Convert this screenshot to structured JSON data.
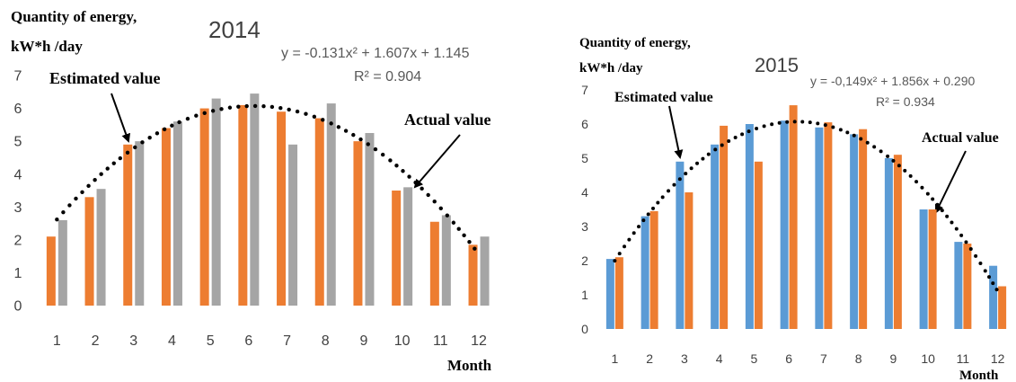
{
  "chart_data": [
    {
      "type": "bar",
      "title": "2014",
      "ylabel": [
        "Quantity of energy,",
        "kW*h /day"
      ],
      "xlabel": "Month",
      "ylim": [
        0,
        7
      ],
      "yticks": [
        "0",
        "1",
        "2",
        "3",
        "4",
        "5",
        "6",
        "7"
      ],
      "categories": [
        "1",
        "2",
        "3",
        "4",
        "5",
        "6",
        "7",
        "8",
        "9",
        "10",
        "11",
        "12"
      ],
      "series": [
        {
          "color": "#ed7d31",
          "values": [
            2.1,
            3.3,
            4.9,
            5.4,
            6.0,
            6.1,
            5.9,
            5.7,
            5.0,
            3.5,
            2.55,
            1.85
          ]
        },
        {
          "color": "#a5a5a5",
          "values": [
            2.6,
            3.55,
            5.0,
            5.6,
            6.3,
            6.45,
            4.9,
            6.15,
            5.25,
            3.6,
            2.75,
            2.1
          ]
        }
      ],
      "trendline": {
        "style": "dotted",
        "color": "#000000",
        "coefficients": [
          -0.131,
          1.607,
          1.145
        ],
        "equation": "y = -0.131x² + 1.607x + 1.145",
        "r2": "R² = 0.904"
      },
      "annotations": [
        "Estimated value",
        "Actual value"
      ],
      "grid": false,
      "legend": "none"
    },
    {
      "type": "bar",
      "title": "2015",
      "ylabel": [
        "Quantity of energy,",
        "kW*h /day"
      ],
      "xlabel": "Month",
      "ylim": [
        0,
        7
      ],
      "yticks": [
        "0",
        "1",
        "2",
        "3",
        "4",
        "5",
        "6",
        "7"
      ],
      "categories": [
        "1",
        "2",
        "3",
        "4",
        "5",
        "6",
        "7",
        "8",
        "9",
        "10",
        "11",
        "12"
      ],
      "series": [
        {
          "color": "#5b9bd5",
          "values": [
            2.05,
            3.3,
            4.9,
            5.4,
            6.0,
            6.1,
            5.9,
            5.7,
            5.0,
            3.5,
            2.55,
            1.85
          ]
        },
        {
          "color": "#ed7d31",
          "values": [
            2.1,
            3.45,
            4.0,
            5.95,
            4.9,
            6.55,
            6.05,
            5.85,
            5.1,
            3.5,
            2.5,
            1.25
          ]
        }
      ],
      "trendline": {
        "style": "dotted",
        "color": "#000000",
        "coefficients": [
          -0.149,
          1.856,
          0.29
        ],
        "equation": "y = -0,149x² + 1.856x + 0.290",
        "r2": "R² = 0.934"
      },
      "annotations": [
        "Estimated value",
        "Actual value"
      ],
      "grid": false,
      "legend": "none"
    }
  ]
}
